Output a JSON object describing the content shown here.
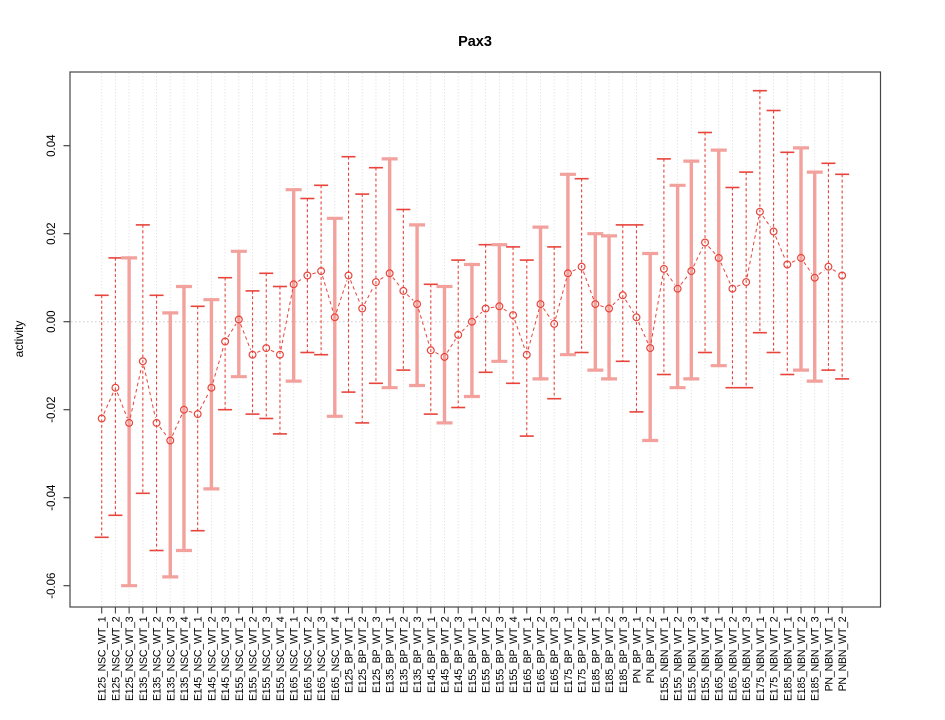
{
  "title": "Pax3",
  "colors": {
    "series_red": "#e8443b",
    "error_bar_pale": "#f2a19c",
    "grid": "#dcdcdc",
    "zero_line": "#c9c9c9",
    "axis": "#454545",
    "text": "#000000",
    "background": "#ffffff"
  },
  "chart_data": {
    "type": "line",
    "title": "Pax3",
    "xlabel": "",
    "ylabel": "activity",
    "ylim": [
      -0.065,
      0.057
    ],
    "yticks": [
      0.04,
      0.02,
      0.0,
      -0.02,
      -0.04,
      -0.06
    ],
    "grid": "vertical dotted gridline at every category; horizontal dotted line at y=0",
    "legend": "none",
    "marker": "open-circle",
    "line_style": "dashed",
    "error_bars": true,
    "categories": [
      "E125_NSC_WT_1",
      "E125_NSC_WT_2",
      "E125_NSC_WT_3",
      "E135_NSC_WT_1",
      "E135_NSC_WT_2",
      "E135_NSC_WT_3",
      "E135_NSC_WT_4",
      "E145_NSC_WT_1",
      "E145_NSC_WT_2",
      "E145_NSC_WT_3",
      "E155_NSC_WT_1",
      "E155_NSC_WT_2",
      "E155_NSC_WT_3",
      "E155_NSC_WT_4",
      "E165_NSC_WT_1",
      "E165_NSC_WT_2",
      "E165_NSC_WT_3",
      "E165_NSC_WT_4",
      "E125_BP_WT_1",
      "E125_BP_WT_2",
      "E125_BP_WT_3",
      "E135_BP_WT_1",
      "E135_BP_WT_2",
      "E135_BP_WT_3",
      "E145_BP_WT_1",
      "E145_BP_WT_2",
      "E145_BP_WT_3",
      "E155_BP_WT_1",
      "E155_BP_WT_2",
      "E155_BP_WT_3",
      "E155_BP_WT_4",
      "E165_BP_WT_1",
      "E165_BP_WT_2",
      "E165_BP_WT_3",
      "E175_BP_WT_1",
      "E175_BP_WT_2",
      "E185_BP_WT_1",
      "E185_BP_WT_2",
      "E185_BP_WT_3",
      "PN_BP_WT_1",
      "PN_BP_WT_2",
      "E155_NBN_WT_1",
      "E155_NBN_WT_2",
      "E155_NBN_WT_3",
      "E155_NBN_WT_4",
      "E165_NBN_WT_1",
      "E165_NBN_WT_2",
      "E165_NBN_WT_3",
      "E175_NBN_WT_1",
      "E175_NBN_WT_2",
      "E185_NBN_WT_1",
      "E185_NBN_WT_2",
      "E185_NBN_WT_3",
      "PN_NBN_WT_1",
      "PN_NBN_WT_2"
    ],
    "series": [
      {
        "name": "activity",
        "values": [
          -0.022,
          -0.015,
          -0.023,
          -0.009,
          -0.023,
          -0.027,
          -0.02,
          -0.021,
          -0.015,
          -0.0045,
          0.0005,
          -0.0075,
          -0.006,
          -0.0075,
          0.0085,
          0.0105,
          0.0115,
          0.001,
          0.0105,
          0.003,
          0.009,
          0.011,
          0.007,
          0.004,
          -0.0065,
          -0.008,
          -0.003,
          0.0,
          0.003,
          0.0035,
          0.0015,
          -0.0075,
          0.004,
          -0.0005,
          0.011,
          0.0125,
          0.004,
          0.003,
          0.006,
          0.001,
          -0.006,
          0.012,
          0.0075,
          0.0115,
          0.018,
          0.0145,
          0.0075,
          0.009,
          0.025,
          0.0205,
          0.013,
          0.0145,
          0.01,
          0.0125,
          0.0105
        ],
        "upper": [
          0.006,
          0.0145,
          0.0145,
          0.022,
          0.006,
          0.002,
          0.008,
          0.0035,
          0.005,
          0.01,
          0.016,
          0.007,
          0.011,
          0.008,
          0.03,
          0.028,
          0.031,
          0.0235,
          0.0375,
          0.029,
          0.035,
          0.037,
          0.0255,
          0.022,
          0.0085,
          0.008,
          0.014,
          0.013,
          0.0175,
          0.0175,
          0.017,
          0.014,
          0.0215,
          0.017,
          0.0335,
          0.0325,
          0.02,
          0.0195,
          0.022,
          0.022,
          0.0155,
          0.037,
          0.031,
          0.0365,
          0.043,
          0.039,
          0.0305,
          0.034,
          0.0525,
          0.048,
          0.0385,
          0.0395,
          0.034,
          0.036,
          0.0335
        ],
        "lower": [
          -0.049,
          -0.044,
          -0.06,
          -0.039,
          -0.052,
          -0.058,
          -0.052,
          -0.0475,
          -0.038,
          -0.02,
          -0.0125,
          -0.021,
          -0.022,
          -0.0255,
          -0.0135,
          -0.007,
          -0.0075,
          -0.0215,
          -0.016,
          -0.023,
          -0.014,
          -0.015,
          -0.011,
          -0.0145,
          -0.021,
          -0.023,
          -0.0195,
          -0.017,
          -0.0115,
          -0.009,
          -0.014,
          -0.026,
          -0.013,
          -0.0175,
          -0.0075,
          -0.007,
          -0.011,
          -0.013,
          -0.009,
          -0.0205,
          -0.027,
          -0.012,
          -0.015,
          -0.013,
          -0.007,
          -0.01,
          -0.015,
          -0.015,
          -0.0025,
          -0.007,
          -0.012,
          -0.011,
          -0.0135,
          -0.011,
          -0.013
        ],
        "error_bar_styles": [
          "dashed",
          "dashed",
          "solid",
          "dashed",
          "dashed",
          "solid",
          "solid",
          "dashed",
          "solid",
          "dashed",
          "solid",
          "dashed",
          "dashed",
          "dashed",
          "solid",
          "dashed",
          "dashed",
          "solid",
          "dashed",
          "dashed",
          "dashed",
          "solid",
          "dashed",
          "solid",
          "dashed",
          "solid",
          "dashed",
          "solid",
          "dashed",
          "solid",
          "dashed",
          "dashed",
          "solid",
          "dashed",
          "solid",
          "dashed",
          "solid",
          "solid",
          "dashed",
          "dashed",
          "solid",
          "dashed",
          "solid",
          "solid",
          "dashed",
          "solid",
          "dashed",
          "dashed",
          "dashed",
          "dashed",
          "dashed",
          "solid",
          "solid",
          "dashed",
          "dashed"
        ]
      }
    ]
  }
}
